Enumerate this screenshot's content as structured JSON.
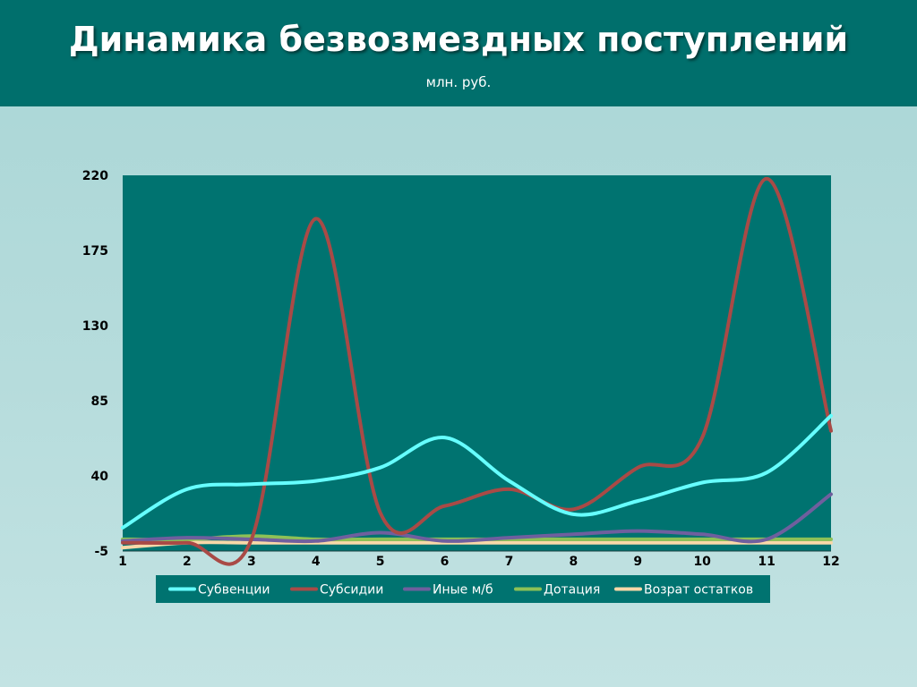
{
  "header": {
    "title": "Динамика безвозмездных поступлений",
    "subtitle": "млн. руб."
  },
  "colors": {
    "header_bg": "#006f6c",
    "plot_bg": "#007370",
    "legend_bg": "#007370"
  },
  "chart_data": {
    "type": "line",
    "smooth": true,
    "categories": [
      "1",
      "2",
      "3",
      "4",
      "5",
      "6",
      "7",
      "8",
      "9",
      "10",
      "11",
      "12"
    ],
    "ylim": [
      -5,
      220
    ],
    "yticks": [
      -5,
      40,
      85,
      130,
      175,
      220
    ],
    "grid": false,
    "legend_position": "bottom",
    "series": [
      {
        "name": "Субвенции",
        "color": "#66ffff",
        "values": [
          9,
          32,
          35,
          37,
          45,
          63,
          37,
          17,
          25,
          36,
          42,
          76
        ]
      },
      {
        "name": "Субсидии",
        "color": "#a94a46",
        "values": [
          0,
          0,
          2,
          194,
          18,
          22,
          32,
          20,
          45,
          63,
          218,
          67
        ]
      },
      {
        "name": "Иные м/б",
        "color": "#6f5f9e",
        "values": [
          1,
          3,
          2,
          1,
          6,
          1,
          3,
          5,
          7,
          5,
          2,
          29
        ]
      },
      {
        "name": "Дотация",
        "color": "#8dc156",
        "values": [
          2,
          2,
          4,
          2,
          2,
          2,
          2,
          2,
          2,
          2,
          2,
          2
        ]
      },
      {
        "name": "Возрат остатков",
        "color": "#f8d8a8",
        "values": [
          -3,
          0,
          0,
          0,
          0,
          0,
          0,
          0,
          0,
          0,
          0,
          0
        ]
      }
    ]
  }
}
